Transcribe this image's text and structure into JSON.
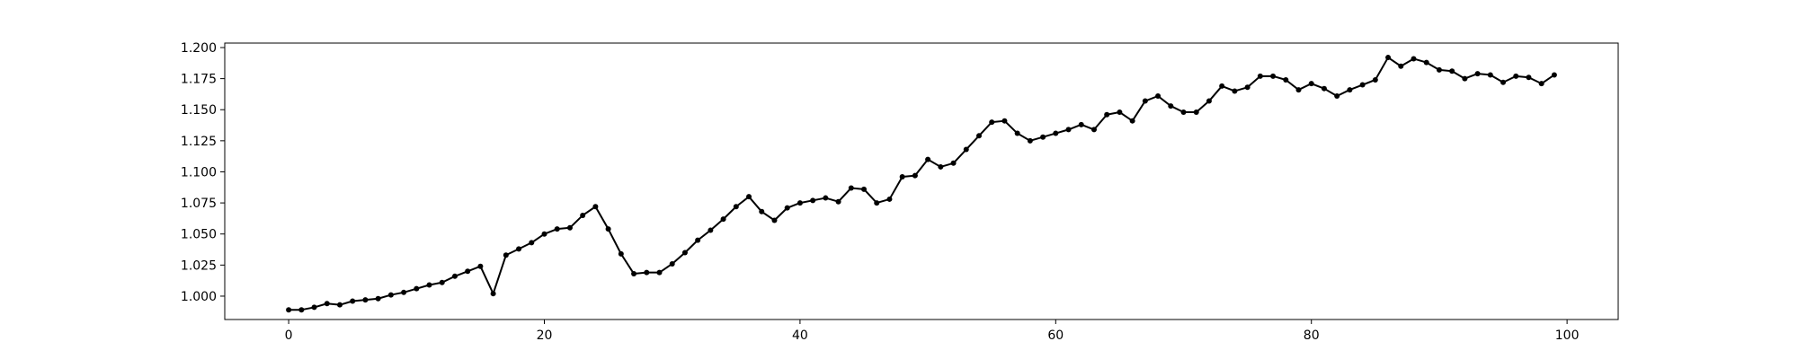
{
  "chart_data": {
    "type": "line",
    "title": "",
    "xlabel": "",
    "ylabel": "",
    "xlim": [
      -5,
      104
    ],
    "ylim": [
      0.9812,
      1.2036
    ],
    "grid": false,
    "x_ticks": [
      0,
      20,
      40,
      60,
      80,
      100
    ],
    "x_tick_labels": [
      "0",
      "20",
      "40",
      "60",
      "80",
      "100"
    ],
    "y_ticks": [
      1.0,
      1.025,
      1.05,
      1.075,
      1.1,
      1.125,
      1.15,
      1.175,
      1.2
    ],
    "y_tick_labels": [
      "1.000",
      "1.025",
      "1.050",
      "1.075",
      "1.100",
      "1.125",
      "1.150",
      "1.175",
      "1.200"
    ],
    "series": [
      {
        "color": "#000000",
        "marker": "circle",
        "x": [
          0,
          1,
          2,
          3,
          4,
          5,
          6,
          7,
          8,
          9,
          10,
          11,
          12,
          13,
          14,
          15,
          16,
          17,
          18,
          19,
          20,
          21,
          22,
          23,
          24,
          25,
          26,
          27,
          28,
          29,
          30,
          31,
          32,
          33,
          34,
          35,
          36,
          37,
          38,
          39,
          40,
          41,
          42,
          43,
          44,
          45,
          46,
          47,
          48,
          49,
          50,
          51,
          52,
          53,
          54,
          55,
          56,
          57,
          58,
          59,
          60,
          61,
          62,
          63,
          64,
          65,
          66,
          67,
          68,
          69,
          70,
          71,
          72,
          73,
          74,
          75,
          76,
          77,
          78,
          79,
          80,
          81,
          82,
          83,
          84,
          85,
          86,
          87,
          88,
          89,
          90,
          91,
          92,
          93,
          94,
          95,
          96,
          97,
          98,
          99
        ],
        "values": [
          0.989,
          0.989,
          0.991,
          0.994,
          0.993,
          0.996,
          0.997,
          0.998,
          1.001,
          1.003,
          1.006,
          1.009,
          1.011,
          1.016,
          1.02,
          1.024,
          1.002,
          1.033,
          1.038,
          1.043,
          1.05,
          1.054,
          1.055,
          1.065,
          1.072,
          1.054,
          1.034,
          1.018,
          1.019,
          1.019,
          1.026,
          1.035,
          1.045,
          1.053,
          1.062,
          1.072,
          1.08,
          1.068,
          1.061,
          1.071,
          1.075,
          1.077,
          1.079,
          1.076,
          1.087,
          1.086,
          1.075,
          1.078,
          1.096,
          1.097,
          1.11,
          1.104,
          1.107,
          1.118,
          1.129,
          1.14,
          1.141,
          1.131,
          1.125,
          1.128,
          1.131,
          1.134,
          1.138,
          1.134,
          1.146,
          1.148,
          1.141,
          1.157,
          1.161,
          1.153,
          1.148,
          1.148,
          1.157,
          1.169,
          1.165,
          1.168,
          1.177,
          1.177,
          1.174,
          1.166,
          1.171,
          1.167,
          1.161,
          1.166,
          1.17,
          1.174,
          1.192,
          1.185,
          1.191,
          1.188,
          1.182,
          1.181,
          1.175,
          1.179,
          1.178,
          1.172,
          1.177,
          1.176,
          1.171,
          1.178
        ]
      }
    ]
  }
}
